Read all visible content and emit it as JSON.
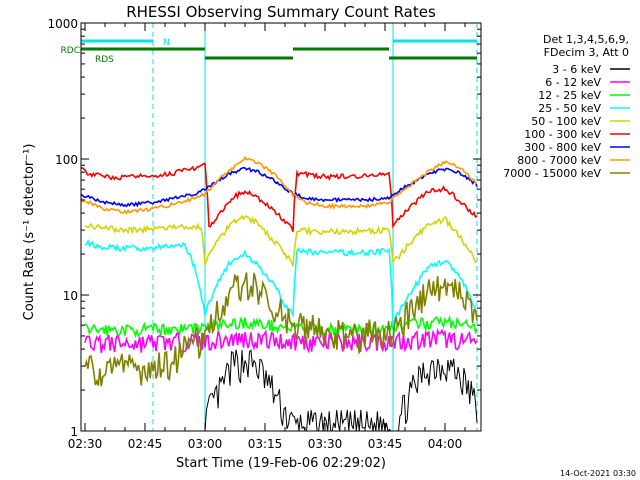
{
  "chart_data": {
    "type": "line",
    "title": "RHESSI Observing Summary Count Rates",
    "xlabel": "Start Time (19-Feb-06 02:29:02)",
    "ylabel": "Count Rate (s⁻¹ detector⁻¹)",
    "yscale": "log",
    "xlim": [
      "02:29",
      "04:09"
    ],
    "ylim": [
      1,
      1000
    ],
    "x_ticks": [
      "02:30",
      "02:45",
      "03:00",
      "03:15",
      "03:30",
      "03:45",
      "04:00"
    ],
    "y_ticks": [
      "1",
      "10",
      "100",
      "1000"
    ],
    "grid": false,
    "legend_position": "right",
    "legend_header": [
      "Det 1,3,4,5,6,9,",
      "FDecim 3, Att 0"
    ],
    "flags": [
      {
        "label": "N",
        "color": "#00e5e5",
        "intervals": [
          [
            "02:29",
            "02:47"
          ],
          [
            "03:47",
            "04:08"
          ]
        ]
      },
      {
        "label": "RDC",
        "color": "#007a00",
        "intervals": [
          [
            "02:29",
            "03:00"
          ],
          [
            "03:22",
            "03:46"
          ]
        ]
      },
      {
        "label": "RDS",
        "color": "#007a00",
        "intervals": [
          [
            "03:00",
            "03:22"
          ],
          [
            "03:46",
            "04:08"
          ]
        ]
      }
    ],
    "markers": [
      {
        "time": "02:29",
        "color": "#00e5e5",
        "style": "solid"
      },
      {
        "time": "02:47",
        "color": "#00e5e5",
        "style": "dashed"
      },
      {
        "time": "03:00",
        "color": "#00e5e5",
        "style": "solid"
      },
      {
        "time": "03:47",
        "color": "#00e5e5",
        "style": "solid"
      },
      {
        "time": "04:08",
        "color": "#00e5e5",
        "style": "dashed"
      }
    ],
    "series": [
      {
        "name": "3 - 6 keV",
        "color": "#000000",
        "points": [
          [
            "03:00",
            1.2
          ],
          [
            "03:04",
            2.0
          ],
          [
            "03:07",
            3.1
          ],
          [
            "03:10",
            3.3
          ],
          [
            "03:13",
            3.0
          ],
          [
            "03:16",
            2.2
          ],
          [
            "03:19",
            1.5
          ],
          [
            "03:22",
            1.1
          ],
          [
            "03:48",
            1.1
          ],
          [
            "03:52",
            2.0
          ],
          [
            "03:56",
            3.0
          ],
          [
            "04:00",
            3.2
          ],
          [
            "04:04",
            2.5
          ],
          [
            "04:08",
            1.5
          ]
        ]
      },
      {
        "name": "6 - 12 keV",
        "color": "#ff00ff",
        "points": [
          [
            "02:30",
            4.5
          ],
          [
            "02:40",
            4.4
          ],
          [
            "02:50",
            4.5
          ],
          [
            "03:00",
            4.6
          ],
          [
            "03:10",
            4.8
          ],
          [
            "03:20",
            4.6
          ],
          [
            "03:30",
            4.5
          ],
          [
            "03:40",
            4.5
          ],
          [
            "03:50",
            4.7
          ],
          [
            "04:00",
            4.8
          ],
          [
            "04:08",
            4.5
          ]
        ]
      },
      {
        "name": "12 - 25 keV",
        "color": "#00ff00",
        "points": [
          [
            "02:30",
            5.6
          ],
          [
            "02:40",
            5.5
          ],
          [
            "02:50",
            5.6
          ],
          [
            "03:00",
            5.8
          ],
          [
            "03:10",
            6.3
          ],
          [
            "03:20",
            5.8
          ],
          [
            "03:30",
            5.6
          ],
          [
            "03:40",
            5.6
          ],
          [
            "03:50",
            6.0
          ],
          [
            "04:00",
            6.4
          ],
          [
            "04:08",
            5.7
          ]
        ]
      },
      {
        "name": "25 - 50 keV",
        "color": "#00ffff",
        "points": [
          [
            "02:30",
            24
          ],
          [
            "02:35",
            22.5
          ],
          [
            "02:40",
            22
          ],
          [
            "02:45",
            22
          ],
          [
            "02:50",
            22.5
          ],
          [
            "02:55",
            23.5
          ],
          [
            "03:00",
            7
          ],
          [
            "03:03",
            12
          ],
          [
            "03:06",
            17
          ],
          [
            "03:10",
            20
          ],
          [
            "03:13",
            17
          ],
          [
            "03:16",
            13
          ],
          [
            "03:20",
            8.5
          ],
          [
            "03:22",
            7
          ],
          [
            "03:23",
            21
          ],
          [
            "03:30",
            20.5
          ],
          [
            "03:40",
            20.5
          ],
          [
            "03:46",
            21
          ],
          [
            "03:47",
            6
          ],
          [
            "03:52",
            11
          ],
          [
            "03:56",
            16
          ],
          [
            "04:00",
            18
          ],
          [
            "04:04",
            13
          ],
          [
            "04:08",
            7
          ]
        ]
      },
      {
        "name": "50 - 100 keV",
        "color": "#d4d400",
        "points": [
          [
            "02:30",
            32
          ],
          [
            "02:40",
            30
          ],
          [
            "02:50",
            31
          ],
          [
            "02:59",
            32
          ],
          [
            "03:00",
            17
          ],
          [
            "03:04",
            27
          ],
          [
            "03:07",
            35
          ],
          [
            "03:10",
            38
          ],
          [
            "03:13",
            34
          ],
          [
            "03:17",
            25
          ],
          [
            "03:22",
            17
          ],
          [
            "03:23",
            30
          ],
          [
            "03:30",
            29
          ],
          [
            "03:40",
            29.5
          ],
          [
            "03:46",
            30
          ],
          [
            "03:47",
            17
          ],
          [
            "03:52",
            25
          ],
          [
            "03:56",
            33
          ],
          [
            "04:00",
            36
          ],
          [
            "04:04",
            26
          ],
          [
            "04:08",
            17
          ]
        ]
      },
      {
        "name": "100 - 300 keV",
        "color": "#ff0000",
        "points": [
          [
            "02:29",
            85
          ],
          [
            "02:31",
            78
          ],
          [
            "02:35",
            74
          ],
          [
            "02:40",
            73
          ],
          [
            "02:45",
            75
          ],
          [
            "02:50",
            77
          ],
          [
            "02:55",
            82
          ],
          [
            "03:00",
            90
          ],
          [
            "03:01",
            31
          ],
          [
            "03:04",
            40
          ],
          [
            "03:07",
            52
          ],
          [
            "03:10",
            58
          ],
          [
            "03:13",
            52
          ],
          [
            "03:17",
            42
          ],
          [
            "03:22",
            30
          ],
          [
            "03:23",
            79
          ],
          [
            "03:30",
            74
          ],
          [
            "03:40",
            75
          ],
          [
            "03:46",
            79
          ],
          [
            "03:47",
            33
          ],
          [
            "03:52",
            46
          ],
          [
            "03:56",
            58
          ],
          [
            "04:00",
            61
          ],
          [
            "04:04",
            48
          ],
          [
            "04:08",
            37
          ]
        ]
      },
      {
        "name": "300 - 800 keV",
        "color": "#0000ff",
        "points": [
          [
            "02:29",
            55
          ],
          [
            "02:35",
            48
          ],
          [
            "02:40",
            46
          ],
          [
            "02:45",
            47
          ],
          [
            "02:50",
            50
          ],
          [
            "02:55",
            53
          ],
          [
            "03:00",
            59
          ],
          [
            "03:03",
            68
          ],
          [
            "03:06",
            78
          ],
          [
            "03:10",
            85
          ],
          [
            "03:13",
            81
          ],
          [
            "03:17",
            70
          ],
          [
            "03:22",
            55
          ],
          [
            "03:25",
            52
          ],
          [
            "03:30",
            50
          ],
          [
            "03:40",
            50
          ],
          [
            "03:46",
            52
          ],
          [
            "03:50",
            62
          ],
          [
            "03:54",
            72
          ],
          [
            "03:58",
            82
          ],
          [
            "04:01",
            85
          ],
          [
            "04:04",
            78
          ],
          [
            "04:08",
            64
          ]
        ]
      },
      {
        "name": "800 - 7000 keV",
        "color": "#ff9900",
        "points": [
          [
            "02:29",
            50
          ],
          [
            "02:35",
            43
          ],
          [
            "02:40",
            41
          ],
          [
            "02:45",
            42
          ],
          [
            "02:50",
            45
          ],
          [
            "02:55",
            49
          ],
          [
            "03:00",
            55
          ],
          [
            "03:03",
            68
          ],
          [
            "03:06",
            82
          ],
          [
            "03:10",
            100
          ],
          [
            "03:13",
            95
          ],
          [
            "03:17",
            78
          ],
          [
            "03:22",
            54
          ],
          [
            "03:25",
            48
          ],
          [
            "03:30",
            45
          ],
          [
            "03:40",
            45
          ],
          [
            "03:46",
            48
          ],
          [
            "03:50",
            60
          ],
          [
            "03:54",
            73
          ],
          [
            "03:58",
            90
          ],
          [
            "04:01",
            95
          ],
          [
            "04:04",
            85
          ],
          [
            "04:08",
            65
          ]
        ]
      },
      {
        "name": "7000 - 15000 keV",
        "color": "#808000",
        "points": [
          [
            "02:30",
            3.0
          ],
          [
            "02:40",
            2.9
          ],
          [
            "02:50",
            3.0
          ],
          [
            "03:00",
            5.0
          ],
          [
            "03:03",
            7.5
          ],
          [
            "03:06",
            10.5
          ],
          [
            "03:10",
            13.0
          ],
          [
            "03:13",
            11.5
          ],
          [
            "03:17",
            8.5
          ],
          [
            "03:22",
            6.0
          ],
          [
            "03:30",
            5.3
          ],
          [
            "03:40",
            5.2
          ],
          [
            "03:47",
            5.0
          ],
          [
            "03:52",
            8.0
          ],
          [
            "03:56",
            11.0
          ],
          [
            "04:00",
            12.0
          ],
          [
            "04:04",
            10.0
          ],
          [
            "04:08",
            6.5
          ]
        ]
      }
    ]
  },
  "footer": {
    "timestamp": "14-Oct-2021 03:30"
  }
}
